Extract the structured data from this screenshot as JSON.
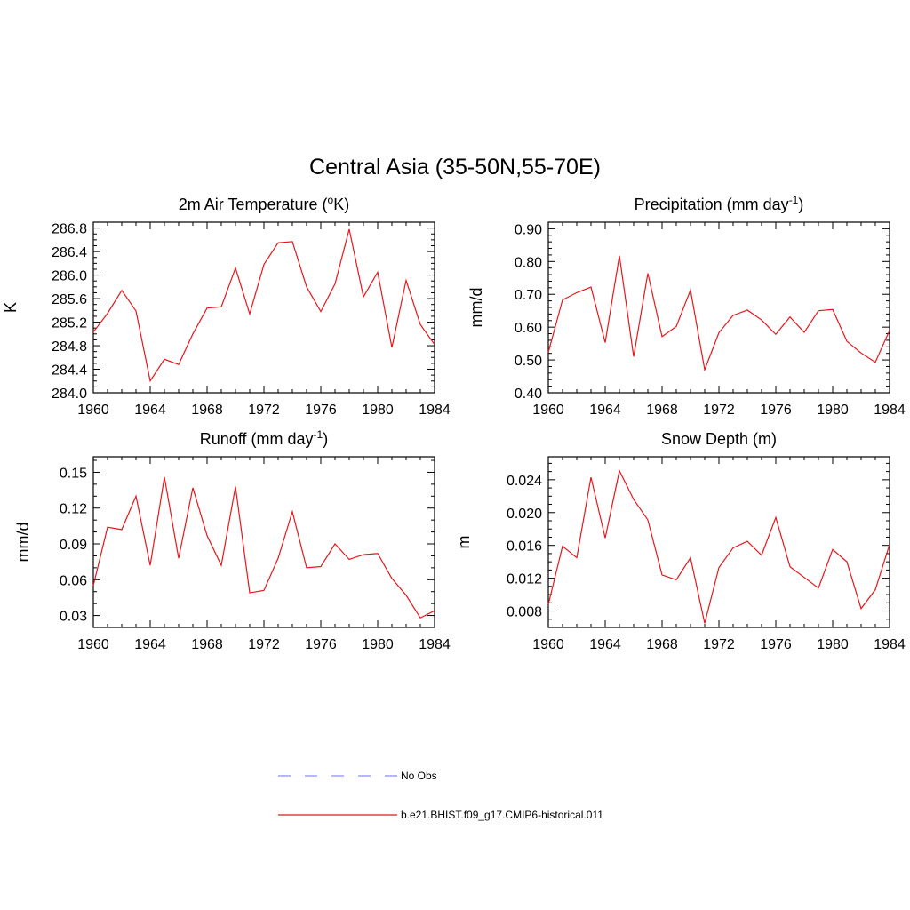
{
  "title": "Central Asia (35-50N,55-70E)",
  "colors": {
    "model_line": "#e8161b",
    "obs_line": "#8c8cff",
    "axis": "#000000"
  },
  "legend": {
    "obs_label": "No Obs",
    "model_label": "b.e21.BHIST.f09_g17.CMIP6-historical.011"
  },
  "chart_data": [
    {
      "type": "line",
      "title_main": "2m Air Temperature (",
      "title_sup": "o",
      "title_rest": "K)",
      "ylabel": "K",
      "xlim": [
        1960,
        1984
      ],
      "ylim": [
        284.0,
        286.9
      ],
      "x_ticks": [
        1960,
        1964,
        1968,
        1972,
        1976,
        1980,
        1984
      ],
      "x_tick_labels": [
        "1960",
        "1964",
        "1968",
        "1972",
        "1976",
        "1980",
        "1984"
      ],
      "y_ticks": [
        284.0,
        284.4,
        284.8,
        285.2,
        285.6,
        286.0,
        286.4,
        286.8
      ],
      "y_tick_labels": [
        "284.0",
        "284.4",
        "284.8",
        "285.2",
        "285.6",
        "286.0",
        "286.4",
        "286.8"
      ],
      "y_minor_step": 0.1,
      "series": [
        {
          "x": [
            1960,
            1961,
            1962,
            1963,
            1964,
            1965,
            1966,
            1967,
            1968,
            1969,
            1970,
            1971,
            1972,
            1973,
            1974,
            1975,
            1976,
            1977,
            1978,
            1979,
            1980,
            1981,
            1982,
            1983,
            1984
          ],
          "y": [
            285.03,
            285.35,
            285.74,
            285.39,
            284.2,
            284.57,
            284.48,
            285.0,
            285.44,
            285.46,
            286.12,
            285.34,
            286.18,
            286.55,
            286.57,
            285.8,
            285.38,
            285.85,
            286.78,
            285.63,
            286.05,
            284.77,
            285.91,
            285.16,
            284.82
          ]
        }
      ]
    },
    {
      "type": "line",
      "title_main": "Precipitation (mm day",
      "title_sup": "-1",
      "title_rest": ")",
      "ylabel": "mm/d",
      "xlim": [
        1960,
        1984
      ],
      "ylim": [
        0.4,
        0.92
      ],
      "x_ticks": [
        1960,
        1964,
        1968,
        1972,
        1976,
        1980,
        1984
      ],
      "x_tick_labels": [
        "1960",
        "1964",
        "1968",
        "1972",
        "1976",
        "1980",
        "1984"
      ],
      "y_ticks": [
        0.4,
        0.5,
        0.6,
        0.7,
        0.8,
        0.9
      ],
      "y_tick_labels": [
        "0.40",
        "0.50",
        "0.60",
        "0.70",
        "0.80",
        "0.90"
      ],
      "y_minor_step": 0.02,
      "series": [
        {
          "x": [
            1960,
            1961,
            1962,
            1963,
            1964,
            1965,
            1966,
            1967,
            1968,
            1969,
            1970,
            1971,
            1972,
            1973,
            1974,
            1975,
            1976,
            1977,
            1978,
            1979,
            1980,
            1981,
            1982,
            1983,
            1984
          ],
          "y": [
            0.523,
            0.683,
            0.705,
            0.722,
            0.553,
            0.818,
            0.51,
            0.764,
            0.571,
            0.602,
            0.713,
            0.47,
            0.583,
            0.636,
            0.652,
            0.622,
            0.578,
            0.631,
            0.584,
            0.65,
            0.654,
            0.557,
            0.521,
            0.493,
            0.59
          ]
        }
      ]
    },
    {
      "type": "line",
      "title_main": "Runoff (mm day",
      "title_sup": "-1",
      "title_rest": ")",
      "ylabel": "mm/d",
      "xlim": [
        1960,
        1984
      ],
      "ylim": [
        0.02,
        0.163
      ],
      "x_ticks": [
        1960,
        1964,
        1968,
        1972,
        1976,
        1980,
        1984
      ],
      "x_tick_labels": [
        "1960",
        "1964",
        "1968",
        "1972",
        "1976",
        "1980",
        "1984"
      ],
      "y_ticks": [
        0.03,
        0.06,
        0.09,
        0.12,
        0.15
      ],
      "y_tick_labels": [
        "0.03",
        "0.06",
        "0.09",
        "0.12",
        "0.15"
      ],
      "y_minor_step": 0.01,
      "series": [
        {
          "x": [
            1960,
            1961,
            1962,
            1963,
            1964,
            1965,
            1966,
            1967,
            1968,
            1969,
            1970,
            1971,
            1972,
            1973,
            1974,
            1975,
            1976,
            1977,
            1978,
            1979,
            1980,
            1981,
            1982,
            1983,
            1984
          ],
          "y": [
            0.055,
            0.104,
            0.102,
            0.13,
            0.072,
            0.146,
            0.078,
            0.137,
            0.097,
            0.072,
            0.138,
            0.049,
            0.051,
            0.078,
            0.117,
            0.07,
            0.071,
            0.09,
            0.077,
            0.081,
            0.082,
            0.061,
            0.047,
            0.028,
            0.034
          ]
        }
      ]
    },
    {
      "type": "line",
      "title_main": "Snow Depth (m)",
      "title_sup": "",
      "title_rest": "",
      "ylabel": "m",
      "xlim": [
        1960,
        1984
      ],
      "ylim": [
        0.006,
        0.0268
      ],
      "x_ticks": [
        1960,
        1964,
        1968,
        1972,
        1976,
        1980,
        1984
      ],
      "x_tick_labels": [
        "1960",
        "1964",
        "1968",
        "1972",
        "1976",
        "1980",
        "1984"
      ],
      "y_ticks": [
        0.008,
        0.012,
        0.016,
        0.02,
        0.024
      ],
      "y_tick_labels": [
        "0.008",
        "0.012",
        "0.016",
        "0.020",
        "0.024"
      ],
      "y_minor_step": 0.001,
      "series": [
        {
          "x": [
            1960,
            1961,
            1962,
            1963,
            1964,
            1965,
            1966,
            1967,
            1968,
            1969,
            1970,
            1971,
            1972,
            1973,
            1974,
            1975,
            1976,
            1977,
            1978,
            1979,
            1980,
            1981,
            1982,
            1983,
            1984
          ],
          "y": [
            0.0088,
            0.0159,
            0.0145,
            0.0243,
            0.0169,
            0.0251,
            0.0216,
            0.0191,
            0.0124,
            0.0118,
            0.0145,
            0.0065,
            0.0133,
            0.0157,
            0.0165,
            0.0148,
            0.0194,
            0.0134,
            0.0121,
            0.0108,
            0.0155,
            0.014,
            0.0083,
            0.0106,
            0.0161
          ]
        }
      ]
    }
  ]
}
